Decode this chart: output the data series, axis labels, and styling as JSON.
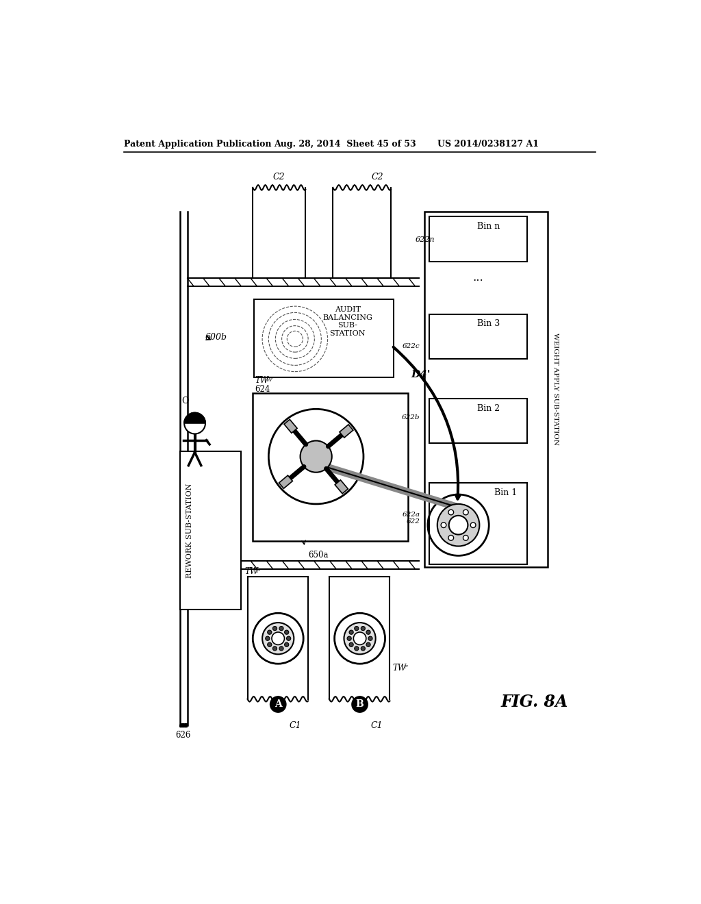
{
  "header_left": "Patent Application Publication",
  "header_center": "Aug. 28, 2014  Sheet 45 of 53",
  "header_right": "US 2014/0238127 A1",
  "figure_label": "FIG. 8A",
  "bg_color": "#ffffff",
  "line_color": "#000000",
  "label_600b": "600b",
  "label_626": "626",
  "label_624": "624",
  "label_650a": "650a",
  "label_622": "622",
  "label_622a": "622a",
  "label_622b": "622b",
  "label_622c": "622c",
  "label_622n": "622n",
  "label_D4prime": "D4'",
  "label_C1_A": "C1",
  "label_C1_B": "C1",
  "label_C2_left": "C2",
  "label_C2_right": "C2",
  "label_A": "A",
  "label_B": "B",
  "label_TWw": "TW",
  "label_TWw_sub": "W",
  "label_TWp": "TW",
  "label_TWp_sub": "P",
  "label_rework": "REWORK SUB-STATION",
  "label_audit_line1": "AUDIT",
  "label_audit_line2": "BALANCING",
  "label_audit_line3": "SUB-",
  "label_audit_line4": "STATION",
  "label_weight": "WEIGHT APPLY SUB-STATION",
  "label_bin1": "Bin 1",
  "label_bin2": "Bin 2",
  "label_bin3": "Bin 3",
  "label_binn": "Bin n"
}
